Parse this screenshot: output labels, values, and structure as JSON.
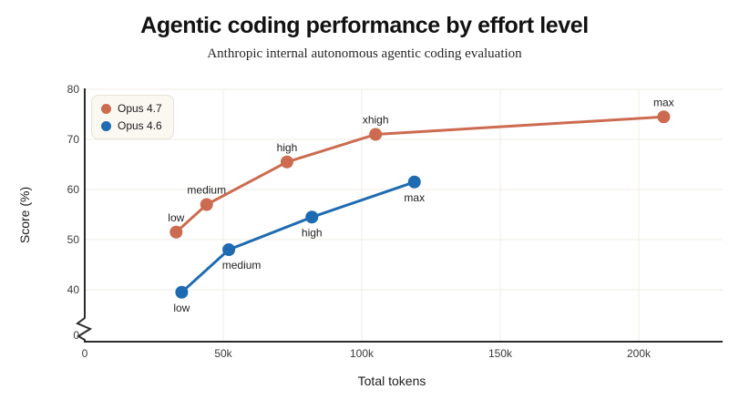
{
  "header": {
    "title": "Agentic coding performance by effort level",
    "subtitle": "Anthropic internal autonomous agentic coding evaluation"
  },
  "chart_data": {
    "type": "line",
    "title": "Agentic coding performance by effort level",
    "subtitle": "Anthropic internal autonomous agentic coding evaluation",
    "xlabel": "Total tokens",
    "ylabel": "Score (%)",
    "grid": true,
    "legend_position": "top-left",
    "x_axis": {
      "min": 0,
      "max": 230000,
      "ticks": [
        {
          "value": 0,
          "label": "0"
        },
        {
          "value": 50000,
          "label": "50k"
        },
        {
          "value": 100000,
          "label": "100k"
        },
        {
          "value": 150000,
          "label": "150k"
        },
        {
          "value": 200000,
          "label": "200k"
        }
      ]
    },
    "y_axis": {
      "display_range": [
        40,
        80
      ],
      "axis_break": {
        "between": [
          0,
          40
        ]
      },
      "ticks": [
        {
          "value": 0,
          "label": "0"
        },
        {
          "value": 40,
          "label": "40"
        },
        {
          "value": 50,
          "label": "50"
        },
        {
          "value": 60,
          "label": "60"
        },
        {
          "value": 70,
          "label": "70"
        },
        {
          "value": 80,
          "label": "80"
        }
      ]
    },
    "series": [
      {
        "name": "Opus 4.7",
        "color": "#CC6B50",
        "label_side": "above",
        "points": [
          {
            "label": "low",
            "x": 33000,
            "y": 51.5
          },
          {
            "label": "medium",
            "x": 44000,
            "y": 57
          },
          {
            "label": "high",
            "x": 73000,
            "y": 65.5
          },
          {
            "label": "xhigh",
            "x": 105000,
            "y": 71
          },
          {
            "label": "max",
            "x": 209000,
            "y": 74.5
          }
        ]
      },
      {
        "name": "Opus 4.6",
        "color": "#1E6BB2",
        "label_side": "below",
        "points": [
          {
            "label": "low",
            "x": 35000,
            "y": 39.5
          },
          {
            "label": "medium",
            "x": 52000,
            "y": 48,
            "label_dx": 14
          },
          {
            "label": "high",
            "x": 82000,
            "y": 54.5
          },
          {
            "label": "max",
            "x": 119000,
            "y": 61.5
          }
        ]
      }
    ]
  }
}
